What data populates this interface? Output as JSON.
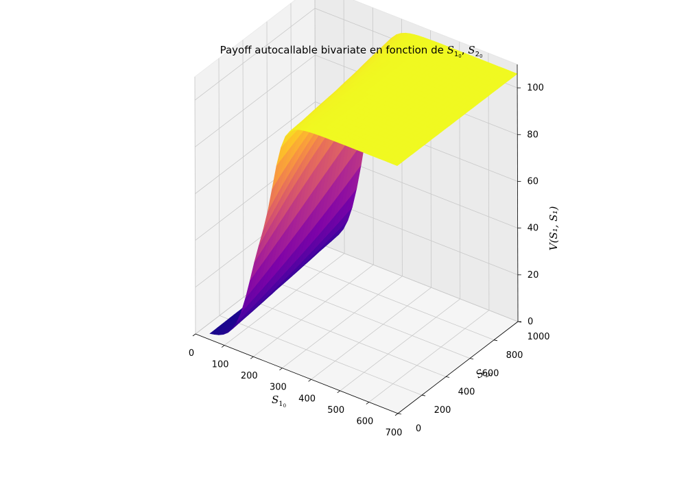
{
  "chart_data": {
    "type": "surface3d",
    "title": {
      "prefix": "Payoff autocallable bivariate en fonction de ",
      "var1": "S",
      "var1_sub": "1",
      "var1_subsub": "0",
      "sep": ", ",
      "var2": "S",
      "var2_sub": "2",
      "var2_subsub": "0"
    },
    "xlabel": {
      "base": "S",
      "sub": "1",
      "subsub": "0"
    },
    "ylabel": {
      "base": "S",
      "sub": "2",
      "subsub": "0"
    },
    "zlabel": "V(S₁, S₁)",
    "x_ticks": [
      "0",
      "100",
      "200",
      "300",
      "400",
      "500",
      "600",
      "700"
    ],
    "y_ticks": [
      "0",
      "200",
      "400",
      "600",
      "800",
      "1000"
    ],
    "z_ticks": [
      "0",
      "20",
      "40",
      "60",
      "80",
      "100"
    ],
    "xlim": [
      0,
      700
    ],
    "ylim": [
      0,
      1000
    ],
    "zlim": [
      0,
      110
    ],
    "colormap": "plasma",
    "grid": true,
    "surface_samples": {
      "S1_at_S2_1000": [
        [
          50,
          2
        ],
        [
          100,
          20
        ],
        [
          150,
          60
        ],
        [
          200,
          92
        ],
        [
          250,
          104
        ],
        [
          300,
          106
        ],
        [
          700,
          106
        ]
      ],
      "S2_at_S1_700": [
        [
          0,
          106
        ],
        [
          1000,
          106
        ]
      ],
      "S2_at_S1_50": [
        [
          0,
          2
        ],
        [
          1000,
          3
        ]
      ]
    }
  }
}
